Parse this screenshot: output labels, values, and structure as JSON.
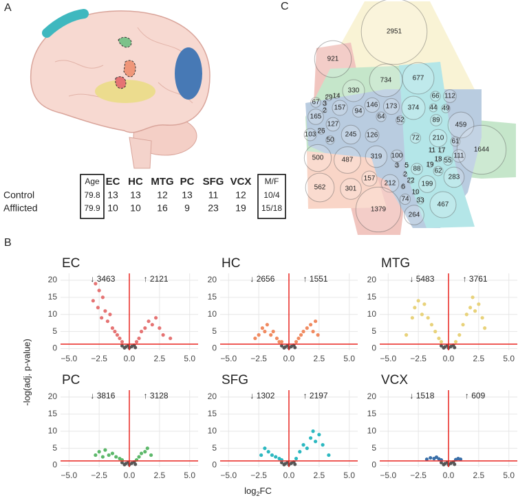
{
  "panel_labels": [
    "A",
    "B",
    "C"
  ],
  "table": {
    "header": [
      "Age",
      "EC",
      "HC",
      "MTG",
      "PC",
      "SFG",
      "VCX",
      "M/F"
    ],
    "header_colors": [
      "#222222",
      "#e57373",
      "#f08a60",
      "#e8d27a",
      "#5cb86a",
      "#2bb8c0",
      "#3a6fa8",
      "#222222"
    ],
    "rows": [
      [
        "Control",
        79.8,
        13,
        13,
        12,
        13,
        11,
        12,
        "10/4"
      ],
      [
        "Afflicted",
        79.9,
        10,
        10,
        16,
        9,
        23,
        19,
        "15/18"
      ]
    ]
  },
  "volcano": {
    "ylabel": "-log(adj. p-value)",
    "xlabel": {
      "base": "log",
      "sub": "2",
      "rest": "FC"
    },
    "xlim": [
      -5.7,
      5.7
    ],
    "ylim": [
      -0.5,
      22
    ],
    "xticks": [
      {
        "value": -5,
        "label": "−5.0"
      },
      {
        "value": -2.5,
        "label": "−2.5"
      },
      {
        "value": 0,
        "label": "0.0"
      },
      {
        "value": 2.5,
        "label": "2.5"
      },
      {
        "value": 5,
        "label": "5.0"
      }
    ],
    "yticks": [
      0,
      5,
      10,
      15,
      20
    ],
    "threshold": 1.3,
    "ns_color": "#555555",
    "line_color": "#e8241f",
    "down_color": "#3a55a8",
    "up_color": "#d83a30",
    "panels": [
      {
        "title": "EC",
        "color": "#e57373",
        "down_label": "↓ 3463",
        "up_label": "↑ 2121",
        "x": [
          -3.0,
          -2.8,
          -2.6,
          -2.5,
          -2.3,
          -2.2,
          -2.0,
          -1.8,
          -1.6,
          -1.4,
          -1.2,
          -1.0,
          -0.8,
          -0.6,
          0.6,
          0.8,
          1.0,
          1.3,
          1.6,
          1.9,
          2.2,
          2.5,
          2.8,
          3.4
        ],
        "y": [
          14,
          19,
          12,
          17,
          9,
          15,
          11,
          8,
          10,
          6,
          5,
          4,
          3,
          2,
          2,
          3,
          5,
          6,
          8,
          7,
          9,
          6,
          4,
          3
        ],
        "ns_x": [
          -0.6,
          -0.3,
          0,
          0.2,
          0.4,
          -0.1,
          0.5,
          -0.4
        ],
        "ns_y": [
          0.8,
          0.5,
          0.2,
          0.6,
          1.0,
          0.9,
          0.3,
          0.2
        ]
      },
      {
        "title": "HC",
        "color": "#f08a60",
        "down_label": "↓ 2656",
        "up_label": "↑ 1551",
        "x": [
          -2.8,
          -2.5,
          -2.2,
          -2.0,
          -1.8,
          -1.5,
          -1.3,
          -1.0,
          -0.8,
          -0.6,
          0.6,
          0.8,
          1.0,
          1.2,
          1.5,
          1.8,
          2.0,
          2.2,
          2.4
        ],
        "y": [
          3,
          4,
          6,
          5,
          7,
          4,
          5,
          3,
          2,
          2,
          2,
          3,
          4,
          5,
          6,
          7,
          5,
          8,
          4
        ],
        "ns_x": [
          -0.6,
          -0.3,
          0,
          0.2,
          0.4,
          -0.1,
          0.5,
          -0.4
        ],
        "ns_y": [
          0.8,
          0.5,
          0.2,
          0.6,
          1.0,
          0.9,
          0.3,
          0.2
        ]
      },
      {
        "title": "MTG",
        "color": "#e8d27a",
        "down_label": "↓ 5483",
        "up_label": "↑ 3761",
        "x": [
          -3.5,
          -3.0,
          -2.8,
          -2.5,
          -2.2,
          -2.0,
          -1.7,
          -1.4,
          -1.1,
          -0.8,
          -0.6,
          0.6,
          0.9,
          1.2,
          1.5,
          1.8,
          2.0,
          2.2,
          2.5,
          2.8,
          3.0
        ],
        "y": [
          4,
          9,
          12,
          14,
          10,
          13,
          9,
          7,
          5,
          3,
          2,
          2,
          4,
          7,
          10,
          12,
          15,
          11,
          13,
          9,
          6
        ],
        "ns_x": [
          -0.6,
          -0.3,
          0,
          0.2,
          0.4,
          -0.1,
          0.5,
          -0.4
        ],
        "ns_y": [
          0.8,
          0.5,
          0.2,
          0.6,
          1.0,
          0.9,
          0.3,
          0.2
        ]
      },
      {
        "title": "PC",
        "color": "#5cb86a",
        "down_label": "↓ 3816",
        "up_label": "↑ 3128",
        "x": [
          -2.8,
          -2.5,
          -2.2,
          -2.0,
          -1.7,
          -1.4,
          -1.1,
          -0.8,
          -0.6,
          0.6,
          0.8,
          1.0,
          1.3,
          1.5,
          1.8
        ],
        "y": [
          3,
          4,
          2.5,
          4.5,
          3,
          3.5,
          2.5,
          2,
          1.6,
          1.6,
          2.5,
          3.5,
          4,
          5,
          3
        ],
        "ns_x": [
          -0.6,
          -0.3,
          0,
          0.2,
          0.4,
          -0.1,
          0.5,
          -0.4
        ],
        "ns_y": [
          0.8,
          0.5,
          0.2,
          0.6,
          1.0,
          0.9,
          0.3,
          0.2
        ]
      },
      {
        "title": "SFG",
        "color": "#2bb8c0",
        "down_label": "↓ 1302",
        "up_label": "↑ 2197",
        "x": [
          -2.3,
          -2.0,
          -1.7,
          -1.4,
          -1.1,
          -0.8,
          -0.6,
          0.6,
          0.9,
          1.2,
          1.5,
          1.8,
          2.0,
          2.2,
          2.5,
          2.8,
          3.3
        ],
        "y": [
          3,
          5,
          4,
          3,
          2.5,
          2,
          1.6,
          2,
          4,
          6,
          5,
          8,
          10,
          7,
          9,
          6,
          3
        ],
        "ns_x": [
          -0.6,
          -0.3,
          0,
          0.2,
          0.4,
          -0.1,
          0.5,
          -0.4
        ],
        "ns_y": [
          0.8,
          0.5,
          0.2,
          0.6,
          1.0,
          0.9,
          0.3,
          0.2
        ]
      },
      {
        "title": "VCX",
        "color": "#3a6fa8",
        "down_label": "↓ 1518",
        "up_label": "↑ 609",
        "x": [
          -1.8,
          -1.5,
          -1.2,
          -1.0,
          -0.8,
          -0.6,
          0.6,
          0.8,
          1.0
        ],
        "y": [
          1.8,
          2.2,
          2.0,
          2.4,
          1.9,
          1.6,
          1.7,
          2.0,
          1.8
        ],
        "ns_x": [
          -0.6,
          -0.3,
          0,
          0.2,
          0.4,
          -0.1,
          0.5,
          -0.4
        ],
        "ns_y": [
          0.8,
          0.5,
          0.2,
          0.6,
          1.0,
          0.9,
          0.3,
          0.2
        ]
      }
    ]
  },
  "euler": {
    "values": [
      2951,
      921,
      734,
      677,
      330,
      146,
      173,
      374,
      66,
      112,
      44,
      49,
      29,
      14,
      67,
      3,
      2,
      157,
      94,
      64,
      52,
      89,
      165,
      127,
      459,
      103,
      26,
      50,
      245,
      126,
      72,
      210,
      61,
      1644,
      11,
      17,
      18,
      55,
      111,
      500,
      487,
      319,
      100,
      3,
      5,
      88,
      19,
      62,
      2,
      22,
      6,
      10,
      199,
      283,
      562,
      301,
      157,
      212,
      74,
      33,
      467,
      1379,
      264
    ]
  }
}
